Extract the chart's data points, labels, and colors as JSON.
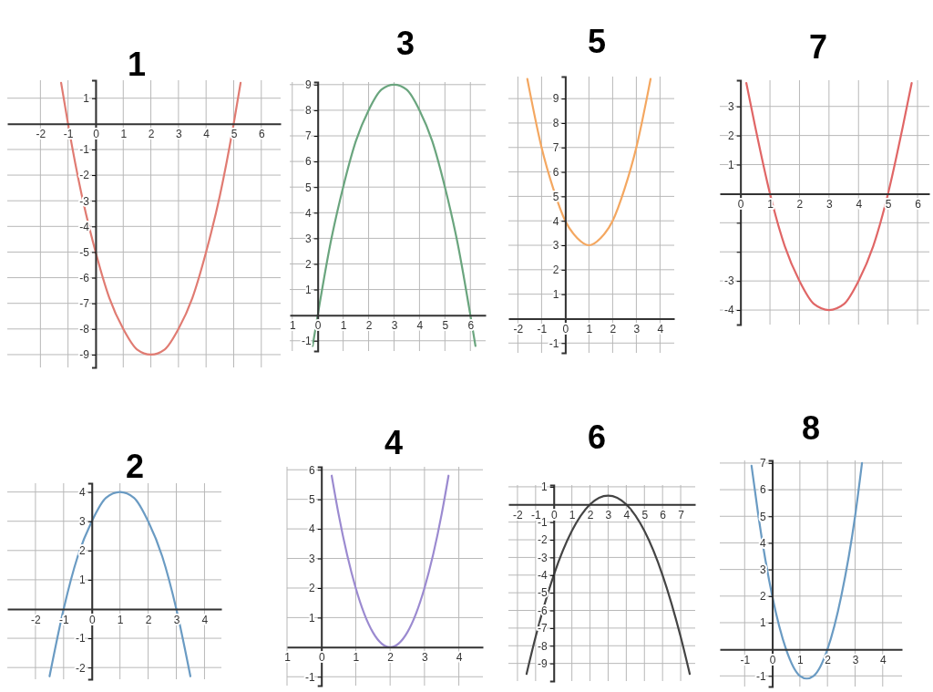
{
  "chart_data": [
    {
      "type": "line",
      "title": "1",
      "xlim": [
        -3.2,
        6.7
      ],
      "ylim": [
        -9.5,
        1.7
      ],
      "xticks": [
        -2,
        -1,
        0,
        1,
        2,
        3,
        4,
        5,
        6
      ],
      "yticks": [
        -9,
        -8,
        -7,
        -6,
        -5,
        -4,
        -3,
        -2,
        -1,
        1
      ],
      "grid": true,
      "series": [
        {
          "color": "#e07b72",
          "x": [
            -1.25,
            -1,
            -0.5,
            0,
            0.5,
            1,
            1.5,
            2,
            2.5,
            3,
            3.5,
            4,
            4.5,
            5,
            5.25
          ],
          "values": [
            1.6,
            0,
            -2.8,
            -5,
            -6.8,
            -8,
            -8.8,
            -9,
            -8.8,
            -8,
            -6.8,
            -5,
            -2.8,
            0,
            1.6
          ]
        }
      ]
    },
    {
      "type": "line",
      "title": "3",
      "xlim": [
        -1.1,
        6.6
      ],
      "ylim": [
        -1.4,
        9.1
      ],
      "xticks": [
        {
          "value": -1,
          "label": "1"
        },
        0,
        1,
        2,
        3,
        4,
        5,
        6
      ],
      "yticks": [
        -1,
        1,
        2,
        3,
        4,
        5,
        6,
        7,
        8,
        9
      ],
      "grid": true,
      "series": [
        {
          "color": "#6aa57e",
          "x": [
            -0.2,
            0,
            0.5,
            1,
            1.5,
            2,
            2.5,
            3,
            3.5,
            4,
            4.5,
            5,
            5.5,
            6,
            6.2
          ],
          "values": [
            -1.2,
            0,
            2.8,
            5,
            6.8,
            8,
            8.8,
            9,
            8.8,
            8,
            6.8,
            5,
            2.8,
            0,
            -1.2
          ]
        }
      ]
    },
    {
      "type": "line",
      "title": "5",
      "xlim": [
        -2.4,
        4.6
      ],
      "ylim": [
        -1.4,
        9.9
      ],
      "xticks": [
        -2,
        -1,
        0,
        1,
        2,
        3,
        4
      ],
      "yticks": [
        -1,
        1,
        2,
        3,
        4,
        5,
        6,
        7,
        8,
        9
      ],
      "grid": true,
      "series": [
        {
          "color": "#f4a760",
          "x": [
            -1.6,
            -1.5,
            -1,
            -0.5,
            0,
            0.5,
            1,
            1.5,
            2,
            2.5,
            3,
            3.5,
            3.6
          ],
          "values": [
            9.8,
            9.3,
            7,
            5.3,
            4,
            3.3,
            3,
            3.3,
            4,
            5.3,
            7,
            9.3,
            9.8
          ]
        }
      ]
    },
    {
      "type": "line",
      "title": "7",
      "xlim": [
        -0.7,
        6.4
      ],
      "ylim": [
        -4.5,
        3.9
      ],
      "xticks": [
        0,
        1,
        2,
        3,
        4,
        5,
        6
      ],
      "yticks": [
        -4,
        -3,
        {
          "value": -2,
          "label": null
        },
        {
          "value": -1,
          "label": null
        },
        1,
        2,
        3
      ],
      "grid": true,
      "series": [
        {
          "color": "#e06666",
          "x": [
            0.2,
            0.5,
            1,
            1.5,
            2,
            2.5,
            3,
            3.5,
            4,
            4.5,
            5,
            5.5,
            5.8
          ],
          "values": [
            3.8,
            2.3,
            0,
            -1.8,
            -3,
            -3.8,
            -4,
            -3.8,
            -3,
            -1.8,
            0,
            2.3,
            3.8
          ]
        }
      ]
    },
    {
      "type": "line",
      "title": "2",
      "xlim": [
        -3,
        4.6
      ],
      "ylim": [
        -2.4,
        4.3
      ],
      "xticks": [
        -2,
        -1,
        0,
        1,
        2,
        3,
        4
      ],
      "yticks": [
        -2,
        -1,
        1,
        2,
        3,
        4
      ],
      "grid": true,
      "series": [
        {
          "color": "#6a9bc3",
          "x": [
            -1.5,
            -1,
            -0.5,
            0,
            0.5,
            1,
            1.5,
            2,
            2.5,
            3,
            3.5
          ],
          "values": [
            -2.3,
            0,
            1.8,
            3,
            3.8,
            4,
            3.8,
            3,
            1.8,
            0,
            -2.3
          ]
        }
      ]
    },
    {
      "type": "line",
      "title": "4",
      "xlim": [
        -1,
        4.7
      ],
      "ylim": [
        -1.3,
        6.1
      ],
      "xticks": [
        {
          "value": -1,
          "label": "1"
        },
        0,
        1,
        2,
        3,
        4
      ],
      "yticks": [
        -1,
        1,
        2,
        3,
        4,
        5,
        6
      ],
      "grid": true,
      "series": [
        {
          "color": "#9b8ad0",
          "x": [
            0.3,
            0.5,
            1,
            1.5,
            2,
            2.5,
            3,
            3.5,
            3.7
          ],
          "values": [
            5.8,
            4.5,
            2,
            0.5,
            0,
            0.5,
            2,
            4.5,
            5.8
          ]
        }
      ]
    },
    {
      "type": "line",
      "title": "6",
      "xlim": [
        -2.5,
        7.8
      ],
      "ylim": [
        -10,
        1.1
      ],
      "xticks": [
        -2,
        -1,
        0,
        1,
        2,
        3,
        4,
        5,
        6,
        7
      ],
      "yticks": [
        -9,
        -8,
        -7,
        -6,
        -5,
        -4,
        -3,
        -2,
        -1,
        1
      ],
      "grid": true,
      "series": [
        {
          "color": "#444444",
          "x": [
            -1.5,
            -1,
            0,
            1,
            2,
            3,
            4,
            5,
            6,
            7,
            7.5
          ],
          "values": [
            -9.6,
            -7.5,
            -4,
            -1.5,
            0,
            0.5,
            0,
            -1.5,
            -4,
            -7.5,
            -9.6
          ]
        }
      ]
    },
    {
      "type": "line",
      "title": "8",
      "xlim": [
        -1.9,
        4.7
      ],
      "ylim": [
        -1.4,
        7.1
      ],
      "xticks": [
        -1,
        0,
        1,
        2,
        3,
        4
      ],
      "yticks": [
        -1,
        1,
        2,
        3,
        4,
        5,
        6,
        7
      ],
      "grid": true,
      "series": [
        {
          "color": "#6a9bc3",
          "x": [
            -0.75,
            -0.5,
            0,
            0.5,
            1,
            1.25,
            1.5,
            2,
            2.5,
            3,
            3.25
          ],
          "values": [
            6.9,
            5,
            2,
            0,
            -1,
            -1.1,
            -1,
            0,
            2,
            5,
            7
          ]
        }
      ]
    }
  ]
}
